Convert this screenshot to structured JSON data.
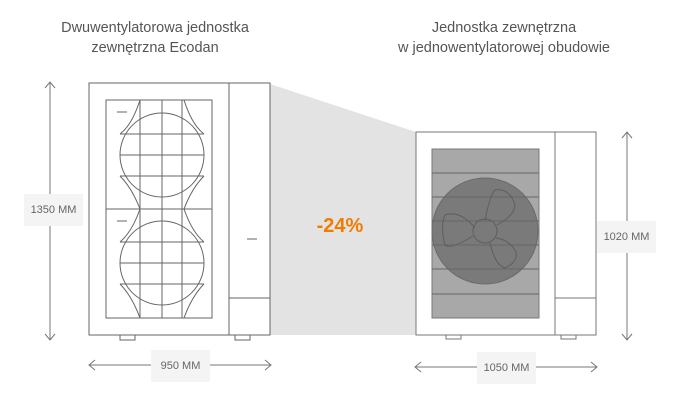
{
  "left_unit": {
    "title_line1": "Dwuwentylatorowa jednostka",
    "title_line2": "zewnętrzna Ecodan",
    "height_label": "1350 MM",
    "width_label": "950 MM",
    "fan_count": 2
  },
  "right_unit": {
    "title_line1": "Jednostka zewnętrzna",
    "title_line2": "w jednowentylatorowej obudowie",
    "height_label": "1020 MM",
    "width_label": "1050 MM",
    "fan_count": 1
  },
  "reduction_label": "-24%",
  "colors": {
    "accent": "#f07c00",
    "outline": "#666666",
    "shade": "#e3e3e3",
    "fan_grille": "#a8a8a8",
    "fan": "#7a7a7a"
  }
}
